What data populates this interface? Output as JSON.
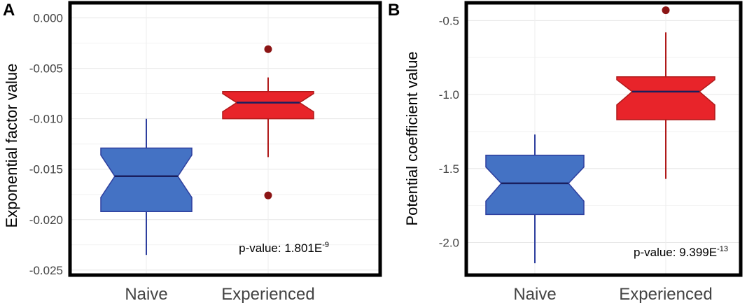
{
  "chart_data": [
    {
      "panel": "A",
      "type": "boxplot",
      "ylabel": "Exponential factor value",
      "ylim": [
        -0.0255,
        0.0015
      ],
      "yticks": [
        0.0,
        -0.005,
        -0.01,
        -0.015,
        -0.02,
        -0.025
      ],
      "ytick_labels": [
        "0.000",
        "-0.005",
        "-0.010",
        "-0.015",
        "-0.020",
        "-0.025"
      ],
      "categories": [
        "Naive",
        "Experienced"
      ],
      "boxes": [
        {
          "name": "Naive",
          "color": "#4472c4",
          "edge": "#2e3f9e",
          "whisker_low": -0.0235,
          "q1": -0.0192,
          "median": -0.0157,
          "q3": -0.0129,
          "whisker_high": -0.01,
          "notch_low": -0.0178,
          "notch_high": -0.0136,
          "outliers": []
        },
        {
          "name": "Experienced",
          "color": "#e8242a",
          "edge": "#b01a1a",
          "whisker_low": -0.0138,
          "q1": -0.01,
          "median": -0.0084,
          "q3": -0.0073,
          "whisker_high": -0.0059,
          "notch_low": -0.0093,
          "notch_high": -0.0075,
          "outliers": [
            -0.0031,
            -0.0176
          ]
        }
      ],
      "annotation": {
        "prefix": "p-value: 1.801E",
        "exponent": "-9"
      }
    },
    {
      "panel": "B",
      "type": "boxplot",
      "ylabel": "Potential coefficient value",
      "ylim": [
        -2.22,
        -0.38
      ],
      "yticks": [
        -0.5,
        -1.0,
        -1.5,
        -2.0
      ],
      "ytick_labels": [
        "-0.5",
        "-1.0",
        "-1.5",
        "-2.0"
      ],
      "categories": [
        "Naive",
        "Experienced"
      ],
      "boxes": [
        {
          "name": "Naive",
          "color": "#4472c4",
          "edge": "#2e3f9e",
          "whisker_low": -2.14,
          "q1": -1.81,
          "median": -1.6,
          "q3": -1.41,
          "whisker_high": -1.27,
          "notch_low": -1.72,
          "notch_high": -1.49,
          "outliers": []
        },
        {
          "name": "Experienced",
          "color": "#e8242a",
          "edge": "#b01a1a",
          "whisker_low": -1.57,
          "q1": -1.17,
          "median": -0.98,
          "q3": -0.88,
          "whisker_high": -0.58,
          "notch_low": -1.07,
          "notch_high": -0.9,
          "outliers": [
            -0.43
          ]
        }
      ],
      "annotation": {
        "prefix": "p-value: 9.399E",
        "exponent": "-13"
      }
    }
  ]
}
